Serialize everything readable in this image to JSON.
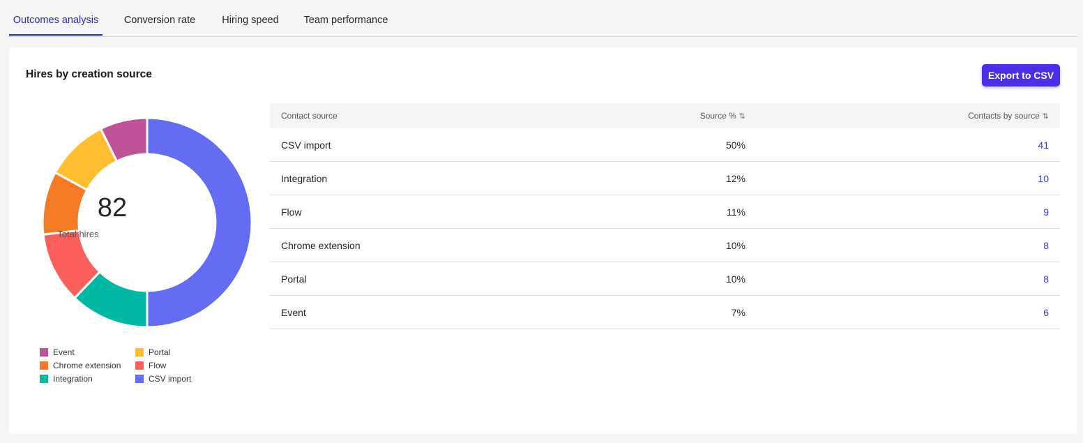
{
  "tabs": [
    {
      "label": "Outcomes analysis",
      "active": true
    },
    {
      "label": "Conversion rate",
      "active": false
    },
    {
      "label": "Hiring speed",
      "active": false
    },
    {
      "label": "Team performance",
      "active": false
    }
  ],
  "card": {
    "title": "Hires by creation source",
    "export_label": "Export to CSV"
  },
  "summary": {
    "total_value": "82",
    "total_label": "Total hires"
  },
  "chart_data": {
    "type": "pie",
    "total": 82,
    "series": [
      {
        "name": "CSV import",
        "value": 41,
        "color": "#636cf3"
      },
      {
        "name": "Integration",
        "value": 10,
        "color": "#00b8a3"
      },
      {
        "name": "Flow",
        "value": 9,
        "color": "#fa5f5c"
      },
      {
        "name": "Chrome extension",
        "value": 8,
        "color": "#f47b23"
      },
      {
        "name": "Portal",
        "value": 8,
        "color": "#ffbf31"
      },
      {
        "name": "Event",
        "value": 6,
        "color": "#c05299"
      }
    ],
    "legend": {
      "placement": "bottom",
      "items": [
        {
          "name": "Event",
          "color": "#c05299"
        },
        {
          "name": "Portal",
          "color": "#ffbf31"
        },
        {
          "name": "Chrome extension",
          "color": "#f47b23"
        },
        {
          "name": "Flow",
          "color": "#fa5f5c"
        },
        {
          "name": "Integration",
          "color": "#00b8a3"
        },
        {
          "name": "CSV import",
          "color": "#636cf3"
        }
      ]
    }
  },
  "table": {
    "headers": {
      "source": "Contact source",
      "percent": "Source %",
      "contacts": "Contacts by source"
    },
    "sort_icon": "sort-arrows-icon",
    "rows": [
      {
        "source": "CSV import",
        "percent": "50%",
        "contacts": "41"
      },
      {
        "source": "Integration",
        "percent": "12%",
        "contacts": "10"
      },
      {
        "source": "Flow",
        "percent": "11%",
        "contacts": "9"
      },
      {
        "source": "Chrome extension",
        "percent": "10%",
        "contacts": "8"
      },
      {
        "source": "Portal",
        "percent": "10%",
        "contacts": "8"
      },
      {
        "source": "Event",
        "percent": "7%",
        "contacts": "6"
      }
    ]
  }
}
